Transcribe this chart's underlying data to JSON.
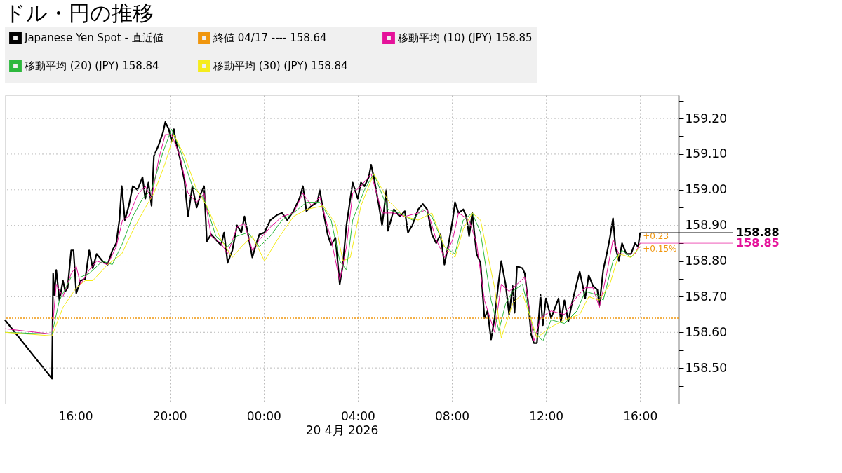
{
  "chart_data": {
    "type": "line",
    "title": "ドル・円の推移",
    "xlabel": "20 4月 2026",
    "xlim": [
      "2026-04-19T13:00",
      "2026-04-20T17:38"
    ],
    "xticks": [
      {
        "value": "2026-04-19T16:00",
        "label": "16:00"
      },
      {
        "value": "2026-04-19T20:00",
        "label": "20:00"
      },
      {
        "value": "2026-04-20T00:00",
        "label": "00:00"
      },
      {
        "value": "2026-04-20T04:00",
        "label": "04:00"
      },
      {
        "value": "2026-04-20T08:00",
        "label": "08:00"
      },
      {
        "value": "2026-04-20T12:00",
        "label": "12:00"
      },
      {
        "value": "2026-04-20T16:00",
        "label": "16:00"
      }
    ],
    "ylim": [
      158.4,
      159.265
    ],
    "yticks": [
      {
        "value": 158.45,
        "label": null
      },
      {
        "value": 158.5,
        "label": "158.50"
      },
      {
        "value": 158.55,
        "label": null
      },
      {
        "value": 158.6,
        "label": "158.60"
      },
      {
        "value": 158.65,
        "label": null
      },
      {
        "value": 158.7,
        "label": "158.70"
      },
      {
        "value": 158.75,
        "label": null
      },
      {
        "value": 158.8,
        "label": "158.80"
      },
      {
        "value": 158.85,
        "label": null
      },
      {
        "value": 158.9,
        "label": "158.90"
      },
      {
        "value": 158.95,
        "label": null
      },
      {
        "value": 159.0,
        "label": "159.00"
      },
      {
        "value": 159.05,
        "label": null
      },
      {
        "value": 159.1,
        "label": "159.10"
      },
      {
        "value": 159.15,
        "label": null
      },
      {
        "value": 159.2,
        "label": "159.20"
      },
      {
        "value": 159.25,
        "label": null
      }
    ],
    "grid": true,
    "legend": "top",
    "line_style": "solid",
    "series": [
      {
        "name": "Japanese Yen Spot - 直近値",
        "color": "#000000",
        "x": [
          "2026-04-19T13:00",
          "2026-04-19T15:00",
          "2026-04-19T15:03",
          "2026-04-19T15:06",
          "2026-04-19T15:11",
          "2026-04-19T15:19",
          "2026-04-19T15:28",
          "2026-04-19T15:34",
          "2026-04-19T15:40",
          "2026-04-19T15:49",
          "2026-04-19T15:55",
          "2026-04-19T16:02",
          "2026-04-19T16:13",
          "2026-04-19T16:25",
          "2026-04-19T16:35",
          "2026-04-19T16:44",
          "2026-04-19T16:54",
          "2026-04-19T17:09",
          "2026-04-19T17:22",
          "2026-04-19T17:34",
          "2026-04-19T17:44",
          "2026-04-19T17:52",
          "2026-04-19T17:58",
          "2026-04-19T18:06",
          "2026-04-19T18:16",
          "2026-04-19T18:26",
          "2026-04-19T18:38",
          "2026-04-19T18:51",
          "2026-04-19T18:58",
          "2026-04-19T19:06",
          "2026-04-19T19:14",
          "2026-04-19T19:20",
          "2026-04-19T19:32",
          "2026-04-19T19:43",
          "2026-04-19T19:49",
          "2026-04-19T19:58",
          "2026-04-19T20:05",
          "2026-04-19T20:11",
          "2026-04-19T20:16",
          "2026-04-19T20:26",
          "2026-04-19T20:38",
          "2026-04-19T20:47",
          "2026-04-19T20:58",
          "2026-04-19T21:09",
          "2026-04-19T21:20",
          "2026-04-19T21:28",
          "2026-04-19T21:35",
          "2026-04-19T21:46",
          "2026-04-19T21:58",
          "2026-04-19T22:11",
          "2026-04-19T22:19",
          "2026-04-19T22:28",
          "2026-04-19T22:40",
          "2026-04-19T22:52",
          "2026-04-19T23:03",
          "2026-04-19T23:11",
          "2026-04-19T23:20",
          "2026-04-19T23:31",
          "2026-04-19T23:40",
          "2026-04-19T23:49",
          "2026-04-20T00:02",
          "2026-04-20T00:17",
          "2026-04-20T00:35",
          "2026-04-20T00:47",
          "2026-04-20T01:00",
          "2026-04-20T01:16",
          "2026-04-20T01:31",
          "2026-04-20T01:40",
          "2026-04-20T01:49",
          "2026-04-20T02:02",
          "2026-04-20T02:17",
          "2026-04-20T02:23",
          "2026-04-20T02:32",
          "2026-04-20T02:43",
          "2026-04-20T02:52",
          "2026-04-20T03:03",
          "2026-04-20T03:14",
          "2026-04-20T03:22",
          "2026-04-20T03:31",
          "2026-04-20T03:41",
          "2026-04-20T03:47",
          "2026-04-20T04:00",
          "2026-04-20T04:08",
          "2026-04-20T04:17",
          "2026-04-20T04:28",
          "2026-04-20T04:34",
          "2026-04-20T04:41",
          "2026-04-20T04:54",
          "2026-04-20T05:02",
          "2026-04-20T05:13",
          "2026-04-20T05:17",
          "2026-04-20T05:32",
          "2026-04-20T05:47",
          "2026-04-20T06:00",
          "2026-04-20T06:08",
          "2026-04-20T06:19",
          "2026-04-20T06:34",
          "2026-04-20T06:46",
          "2026-04-20T06:57",
          "2026-04-20T07:09",
          "2026-04-20T07:20",
          "2026-04-20T07:31",
          "2026-04-20T07:41",
          "2026-04-20T07:51",
          "2026-04-20T08:02",
          "2026-04-20T08:08",
          "2026-04-20T08:17",
          "2026-04-20T08:29",
          "2026-04-20T08:37",
          "2026-04-20T08:44",
          "2026-04-20T08:52",
          "2026-04-20T09:03",
          "2026-04-20T09:13",
          "2026-04-20T09:23",
          "2026-04-20T09:31",
          "2026-04-20T09:40",
          "2026-04-20T09:49",
          "2026-04-20T09:58",
          "2026-04-20T10:06",
          "2026-04-20T10:17",
          "2026-04-20T10:26",
          "2026-04-20T10:35",
          "2026-04-20T10:40",
          "2026-04-20T10:46",
          "2026-04-20T11:00",
          "2026-04-20T11:06",
          "2026-04-20T11:16",
          "2026-04-20T11:22",
          "2026-04-20T11:29",
          "2026-04-20T11:37",
          "2026-04-20T11:46",
          "2026-04-20T11:52",
          "2026-04-20T12:00",
          "2026-04-20T12:13",
          "2026-04-20T12:20",
          "2026-04-20T12:32",
          "2026-04-20T12:38",
          "2026-04-20T12:47",
          "2026-04-20T12:57",
          "2026-04-20T13:06",
          "2026-04-20T13:19",
          "2026-04-20T13:26",
          "2026-04-20T13:34",
          "2026-04-20T13:40",
          "2026-04-20T13:49",
          "2026-04-20T14:00",
          "2026-04-20T14:11",
          "2026-04-20T14:16",
          "2026-04-20T14:26",
          "2026-04-20T14:35",
          "2026-04-20T14:43",
          "2026-04-20T14:51",
          "2026-04-20T14:57",
          "2026-04-20T15:06",
          "2026-04-20T15:14",
          "2026-04-20T15:25",
          "2026-04-20T15:37",
          "2026-04-20T15:47",
          "2026-04-20T15:55",
          "2026-04-20T16:00"
        ],
        "values": [
          158.635,
          158.47,
          158.765,
          158.705,
          158.775,
          158.69,
          158.745,
          158.715,
          158.725,
          158.83,
          158.83,
          158.71,
          158.745,
          158.75,
          158.83,
          158.78,
          158.82,
          158.8,
          158.79,
          158.83,
          158.85,
          158.915,
          159.01,
          158.915,
          158.955,
          159.01,
          159.0,
          159.035,
          158.975,
          159.02,
          158.955,
          159.095,
          159.125,
          159.16,
          159.19,
          159.17,
          159.135,
          159.17,
          159.135,
          159.09,
          159.025,
          158.925,
          159.01,
          158.95,
          158.99,
          159.01,
          158.855,
          158.875,
          158.86,
          158.845,
          158.88,
          158.795,
          158.83,
          158.9,
          158.88,
          158.925,
          158.875,
          158.81,
          158.845,
          158.875,
          158.88,
          158.915,
          158.93,
          158.935,
          158.915,
          158.94,
          158.975,
          159.01,
          158.94,
          158.955,
          158.965,
          159.0,
          158.94,
          158.875,
          158.845,
          158.865,
          158.735,
          158.79,
          158.9,
          158.975,
          159.02,
          158.975,
          159.02,
          159.01,
          159.035,
          159.07,
          159.035,
          158.955,
          158.9,
          159.0,
          158.885,
          158.945,
          158.925,
          158.94,
          158.88,
          158.9,
          158.945,
          158.96,
          158.945,
          158.875,
          158.85,
          158.875,
          158.79,
          158.845,
          158.915,
          158.965,
          158.935,
          158.945,
          158.925,
          158.87,
          158.935,
          158.82,
          158.795,
          158.64,
          158.66,
          158.58,
          158.64,
          158.73,
          158.8,
          158.735,
          158.65,
          158.73,
          158.655,
          158.785,
          158.78,
          158.765,
          158.67,
          158.595,
          158.57,
          158.57,
          158.705,
          158.62,
          158.695,
          158.64,
          158.66,
          158.695,
          158.63,
          158.69,
          158.63,
          158.68,
          158.74,
          158.77,
          158.73,
          158.695,
          158.76,
          158.73,
          158.72,
          158.675,
          158.775,
          158.82,
          158.865,
          158.92,
          158.84,
          158.8,
          158.85,
          158.82,
          158.82,
          158.85,
          158.84,
          158.88
        ],
        "value_labels": [
          null,
          null,
          null,
          null,
          null,
          null,
          null,
          null,
          null,
          null,
          null,
          null,
          null,
          null,
          null,
          null,
          null,
          null,
          null,
          null,
          null,
          null,
          null,
          null,
          null,
          null,
          null,
          null,
          null,
          null,
          null,
          null,
          null,
          null,
          null,
          null,
          null,
          null,
          null,
          null,
          null,
          null,
          null,
          null,
          null,
          null,
          null,
          null,
          null,
          null,
          null,
          null,
          null,
          null,
          null,
          null,
          null,
          null,
          null,
          null,
          null,
          null,
          null,
          null,
          null,
          null,
          null,
          null,
          null,
          null,
          null,
          null,
          null,
          null,
          null,
          null,
          null,
          null,
          null,
          null,
          null,
          null,
          null,
          null,
          null,
          null,
          null,
          null,
          null,
          null,
          null,
          null,
          null,
          null,
          null,
          null,
          null,
          null,
          null,
          null,
          null,
          null,
          null,
          null,
          null,
          null,
          null,
          null,
          null,
          null,
          null,
          null,
          null,
          null,
          null,
          null,
          null,
          null,
          null,
          null,
          null,
          null,
          null,
          null,
          null,
          null,
          null,
          null,
          null,
          null,
          null,
          null,
          null,
          null,
          null,
          null,
          null,
          null,
          null,
          null,
          null,
          null,
          null,
          null,
          null,
          null,
          null,
          null,
          null,
          null,
          null,
          null,
          null,
          null,
          null,
          null,
          null,
          null,
          null,
          "158.88"
        ]
      },
      {
        "name": "移動平均 (10) (JPY) 158.85",
        "color": "#e5129a",
        "x": [
          "2026-04-19T13:00",
          "2026-04-19T15:00",
          "2026-04-19T15:11",
          "2026-04-19T15:28",
          "2026-04-19T15:49",
          "2026-04-19T16:02",
          "2026-04-19T16:13",
          "2026-04-19T16:35",
          "2026-04-19T16:54",
          "2026-04-19T17:22",
          "2026-04-19T17:44",
          "2026-04-19T18:00",
          "2026-04-19T18:16",
          "2026-04-19T18:38",
          "2026-04-19T18:58",
          "2026-04-19T19:14",
          "2026-04-19T19:32",
          "2026-04-19T19:49",
          "2026-04-19T20:05",
          "2026-04-19T20:26",
          "2026-04-19T20:47",
          "2026-04-19T21:09",
          "2026-04-19T21:28",
          "2026-04-19T21:46",
          "2026-04-19T22:11",
          "2026-04-19T22:28",
          "2026-04-19T22:52",
          "2026-04-19T23:11",
          "2026-04-19T23:31",
          "2026-04-19T23:49",
          "2026-04-20T00:17",
          "2026-04-20T00:47",
          "2026-04-20T01:16",
          "2026-04-20T01:40",
          "2026-04-20T02:02",
          "2026-04-20T02:23",
          "2026-04-20T02:52",
          "2026-04-20T03:14",
          "2026-04-20T03:31",
          "2026-04-20T03:47",
          "2026-04-20T04:08",
          "2026-04-20T04:34",
          "2026-04-20T05:02",
          "2026-04-20T05:32",
          "2026-04-20T06:00",
          "2026-04-20T06:34",
          "2026-04-20T06:57",
          "2026-04-20T07:20",
          "2026-04-20T07:41",
          "2026-04-20T08:02",
          "2026-04-20T08:17",
          "2026-04-20T08:44",
          "2026-04-20T09:03",
          "2026-04-20T09:23",
          "2026-04-20T09:49",
          "2026-04-20T10:06",
          "2026-04-20T10:26",
          "2026-04-20T10:46",
          "2026-04-20T11:06",
          "2026-04-20T11:29",
          "2026-04-20T11:46",
          "2026-04-20T12:13",
          "2026-04-20T12:47",
          "2026-04-20T13:19",
          "2026-04-20T13:40",
          "2026-04-20T14:00",
          "2026-04-20T14:16",
          "2026-04-20T14:35",
          "2026-04-20T14:51",
          "2026-04-20T15:06",
          "2026-04-20T15:25",
          "2026-04-20T15:47",
          "2026-04-20T16:00"
        ],
        "values": [
          158.61,
          158.595,
          158.735,
          158.7,
          158.765,
          158.785,
          158.735,
          158.775,
          158.8,
          158.79,
          158.84,
          158.915,
          158.925,
          158.985,
          159.01,
          158.975,
          159.085,
          159.155,
          159.155,
          159.095,
          158.99,
          158.965,
          158.99,
          158.87,
          158.85,
          158.82,
          158.895,
          158.905,
          158.83,
          158.86,
          158.895,
          158.925,
          158.935,
          158.99,
          158.955,
          158.98,
          158.86,
          158.745,
          158.84,
          158.99,
          159.01,
          159.045,
          158.935,
          158.935,
          158.925,
          158.935,
          158.945,
          158.86,
          158.81,
          158.86,
          158.935,
          158.915,
          158.85,
          158.69,
          158.6,
          158.735,
          158.715,
          158.735,
          158.755,
          158.575,
          158.64,
          158.66,
          158.65,
          158.7,
          158.725,
          158.725,
          158.67,
          158.765,
          158.86,
          158.82,
          158.82,
          158.82,
          158.85
        ],
        "value_labels": [
          null,
          null,
          null,
          null,
          null,
          null,
          null,
          null,
          null,
          null,
          null,
          null,
          null,
          null,
          null,
          null,
          null,
          null,
          null,
          null,
          null,
          null,
          null,
          null,
          null,
          null,
          null,
          null,
          null,
          null,
          null,
          null,
          null,
          null,
          null,
          null,
          null,
          null,
          null,
          null,
          null,
          null,
          null,
          null,
          null,
          null,
          null,
          null,
          null,
          null,
          null,
          null,
          null,
          null,
          null,
          null,
          null,
          null,
          null,
          null,
          null,
          null,
          null,
          null,
          null,
          null,
          null,
          null,
          null,
          null,
          null,
          null,
          "158.85"
        ]
      },
      {
        "name": "移動平均 (20) (JPY) 158.84",
        "color": "#2db83d",
        "x": [
          "2026-04-19T13:00",
          "2026-04-19T15:00",
          "2026-04-19T15:19",
          "2026-04-19T15:49",
          "2026-04-19T16:13",
          "2026-04-19T16:35",
          "2026-04-19T17:09",
          "2026-04-19T17:34",
          "2026-04-19T18:00",
          "2026-04-19T18:26",
          "2026-04-19T18:51",
          "2026-04-19T19:14",
          "2026-04-19T19:43",
          "2026-04-19T20:05",
          "2026-04-19T20:26",
          "2026-04-19T20:58",
          "2026-04-19T21:28",
          "2026-04-19T21:58",
          "2026-04-19T22:28",
          "2026-04-19T22:52",
          "2026-04-19T23:20",
          "2026-04-19T23:49",
          "2026-04-20T00:17",
          "2026-04-20T00:47",
          "2026-04-20T01:16",
          "2026-04-20T01:49",
          "2026-04-20T02:23",
          "2026-04-20T02:52",
          "2026-04-20T03:14",
          "2026-04-20T03:31",
          "2026-04-20T03:47",
          "2026-04-20T04:17",
          "2026-04-20T04:41",
          "2026-04-20T05:17",
          "2026-04-20T05:47",
          "2026-04-20T06:19",
          "2026-04-20T06:46",
          "2026-04-20T07:09",
          "2026-04-20T07:41",
          "2026-04-20T08:08",
          "2026-04-20T08:29",
          "2026-04-20T08:52",
          "2026-04-20T09:13",
          "2026-04-20T09:40",
          "2026-04-20T10:00",
          "2026-04-20T10:17",
          "2026-04-20T10:35",
          "2026-04-20T11:00",
          "2026-04-20T11:29",
          "2026-04-20T11:52",
          "2026-04-20T12:13",
          "2026-04-20T12:47",
          "2026-04-20T13:19",
          "2026-04-20T13:40",
          "2026-04-20T14:11",
          "2026-04-20T14:26",
          "2026-04-20T14:51",
          "2026-04-20T15:14",
          "2026-04-20T15:37",
          "2026-04-20T16:00"
        ],
        "values": [
          158.6,
          158.595,
          158.69,
          158.755,
          158.755,
          158.765,
          158.8,
          158.79,
          158.85,
          158.925,
          158.975,
          159.0,
          159.105,
          159.17,
          159.115,
          159.01,
          158.975,
          158.87,
          158.84,
          158.87,
          158.88,
          158.84,
          158.87,
          158.915,
          158.935,
          158.965,
          158.965,
          158.915,
          158.8,
          158.775,
          158.915,
          159.0,
          159.045,
          158.945,
          158.935,
          158.915,
          158.945,
          158.925,
          158.84,
          158.82,
          158.915,
          158.935,
          158.88,
          158.69,
          158.605,
          158.68,
          158.715,
          158.735,
          158.605,
          158.575,
          158.635,
          158.625,
          158.66,
          158.715,
          158.705,
          158.69,
          158.8,
          158.83,
          158.81,
          158.84
        ]
      },
      {
        "name": "移動平均 (30) (JPY) 158.84",
        "color": "#f5ec1c",
        "x": [
          "2026-04-19T13:00",
          "2026-04-19T15:00",
          "2026-04-19T15:28",
          "2026-04-19T16:02",
          "2026-04-19T16:25",
          "2026-04-19T16:44",
          "2026-04-19T17:22",
          "2026-04-19T17:58",
          "2026-04-19T18:26",
          "2026-04-19T18:58",
          "2026-04-19T19:20",
          "2026-04-19T19:49",
          "2026-04-19T20:11",
          "2026-04-19T20:38",
          "2026-04-19T21:09",
          "2026-04-19T21:35",
          "2026-04-19T22:11",
          "2026-04-19T22:40",
          "2026-04-19T23:03",
          "2026-04-19T23:31",
          "2026-04-20T00:02",
          "2026-04-20T00:35",
          "2026-04-20T01:16",
          "2026-04-20T01:49",
          "2026-04-20T02:32",
          "2026-04-20T03:03",
          "2026-04-20T03:22",
          "2026-04-20T03:41",
          "2026-04-20T04:08",
          "2026-04-20T04:41",
          "2026-04-20T05:17",
          "2026-04-20T06:00",
          "2026-04-20T06:34",
          "2026-04-20T07:09",
          "2026-04-20T07:41",
          "2026-04-20T08:08",
          "2026-04-20T08:29",
          "2026-04-20T08:52",
          "2026-04-20T09:13",
          "2026-04-20T09:49",
          "2026-04-20T10:06",
          "2026-04-20T10:35",
          "2026-04-20T11:00",
          "2026-04-20T11:37",
          "2026-04-20T12:13",
          "2026-04-20T12:47",
          "2026-04-20T13:26",
          "2026-04-20T13:49",
          "2026-04-20T14:16",
          "2026-04-20T14:43",
          "2026-04-20T15:06",
          "2026-04-20T15:37",
          "2026-04-20T16:00"
        ],
        "values": [
          158.6,
          158.59,
          158.67,
          158.725,
          158.745,
          158.745,
          158.79,
          158.82,
          158.885,
          158.95,
          158.99,
          159.075,
          159.155,
          159.095,
          159.0,
          158.955,
          158.86,
          158.81,
          158.84,
          158.87,
          158.8,
          158.86,
          158.925,
          158.945,
          158.955,
          158.905,
          158.8,
          158.81,
          158.955,
          159.045,
          158.97,
          158.925,
          158.915,
          158.935,
          158.84,
          158.81,
          158.89,
          158.935,
          158.915,
          158.725,
          158.585,
          158.68,
          158.71,
          158.585,
          158.615,
          158.635,
          158.65,
          158.7,
          158.69,
          158.735,
          158.82,
          158.81,
          158.84
        ]
      }
    ],
    "ref_lines": [
      {
        "axis": "y",
        "value": 158.64,
        "label": "終値 04/17 ----  158.64",
        "color": "#f0960e",
        "line_style": "dotted"
      }
    ],
    "annotations": [
      {
        "text": "+0.23",
        "x": "2026-04-20T16:00",
        "y": 158.87
      },
      {
        "text": "+0.15%",
        "x": "2026-04-20T16:00",
        "y": 158.835
      }
    ]
  }
}
